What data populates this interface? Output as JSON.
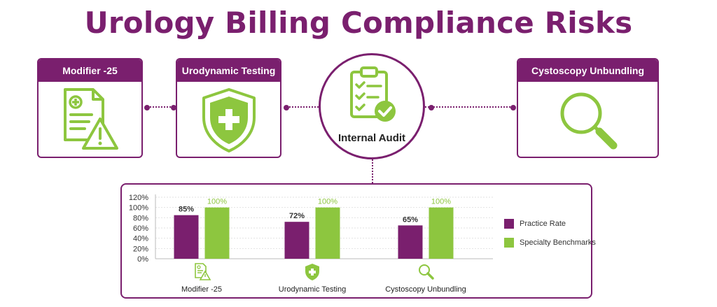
{
  "title": "Urology Billing Compliance Risks",
  "colors": {
    "brand": "#7a1f6e",
    "accent": "#8dc63f"
  },
  "cards": [
    {
      "label": "Modifier -25",
      "icon": "document-warning-icon"
    },
    {
      "label": "Urodynamic Testing",
      "icon": "shield-plus-icon"
    },
    {
      "label": "Cystoscopy Unbundling",
      "icon": "magnifier-icon"
    }
  ],
  "center": {
    "label": "Internal Audit",
    "icon": "clipboard-check-icon"
  },
  "legend": [
    {
      "label": "Practice Rate",
      "color": "#7a1f6e"
    },
    {
      "label": "Specialty Benchmarks",
      "color": "#8dc63f"
    }
  ],
  "chart_data": {
    "type": "bar",
    "categories": [
      "Modifier -25",
      "Urodynamic Testing",
      "Cystoscopy Unbundling"
    ],
    "series": [
      {
        "name": "Practice Rate",
        "values": [
          85,
          72,
          65
        ],
        "labels": [
          "85%",
          "72%",
          "65%"
        ]
      },
      {
        "name": "Specialty Benchmarks",
        "values": [
          100,
          100,
          100
        ],
        "labels": [
          "100%",
          "100%",
          "100%"
        ]
      }
    ],
    "y_ticks": [
      "0%",
      "20%",
      "40%",
      "60%",
      "80%",
      "100%",
      "120%"
    ],
    "ylim": [
      0,
      120
    ],
    "grid": true,
    "legend_position": "right"
  }
}
